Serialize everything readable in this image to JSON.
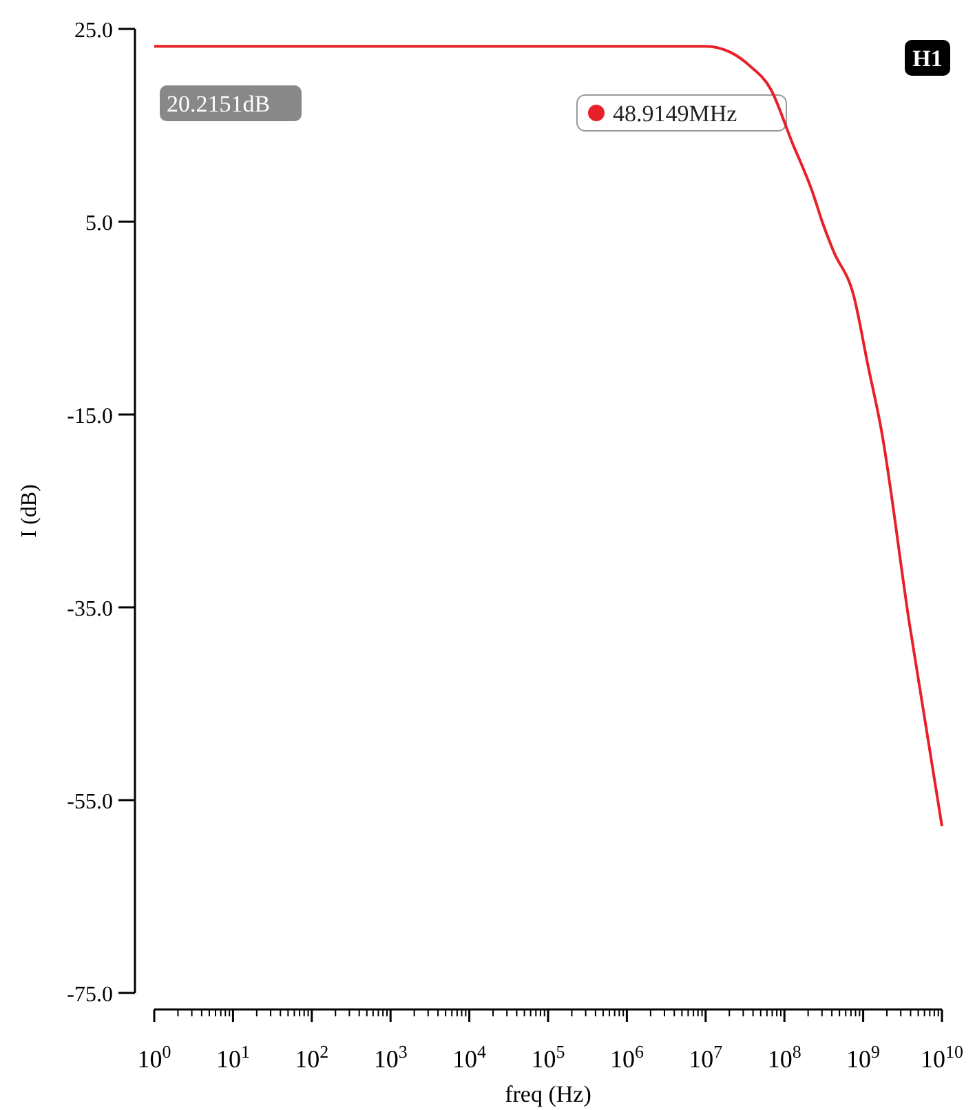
{
  "chart_data": {
    "type": "line",
    "xlabel": "freq (Hz)",
    "ylabel": "I (dB)",
    "log": "x",
    "x": [
      1,
      1000,
      100000,
      1000000,
      10000000,
      20400000,
      37200000,
      67600000,
      123000000,
      229000000,
      302000000,
      417000000,
      759000000,
      1150000000,
      1700000000,
      3800000000,
      10000000000
    ],
    "series": [
      {
        "color": "#e8202a",
        "values": [
          23.2,
          23.2,
          23.2,
          23.2,
          23.2,
          22.6,
          21.1,
          18.7,
          13.4,
          8.0,
          5.0,
          2.0,
          -2.7,
          -9.9,
          -16.6,
          -36.3,
          -57.7
        ]
      }
    ],
    "xlim": [
      1,
      10000000000
    ],
    "xticks": [
      {
        "value": 1,
        "label": "10$^{0}$"
      },
      {
        "value": 10,
        "label": "10$^{1}$"
      },
      {
        "value": 100,
        "label": "10$^{2}$"
      },
      {
        "value": 1000,
        "label": "10$^{3}$"
      },
      {
        "value": 10000,
        "label": "10$^{4}$"
      },
      {
        "value": 100000,
        "label": "10$^{5}$"
      },
      {
        "value": 1000000,
        "label": "10$^{6}$"
      },
      {
        "value": 10000000,
        "label": "10$^{7}$"
      },
      {
        "value": 100000000,
        "label": "10$^{8}$"
      },
      {
        "value": 1000000000,
        "label": "10$^{9}$"
      },
      {
        "value": 10000000000,
        "label": "10$^{10}$"
      }
    ],
    "ylim": [
      -75,
      25
    ],
    "yticks": [
      {
        "value": 25,
        "label": "25.0"
      },
      {
        "value": 5,
        "label": "5.0"
      },
      {
        "value": -15,
        "label": "-15.0"
      },
      {
        "value": -35,
        "label": "-35.0"
      },
      {
        "value": -55,
        "label": "-55.0"
      },
      {
        "value": -75,
        "label": "-75.0"
      }
    ],
    "annotations": [
      "20.2151dB",
      "48.9149MHz",
      "H1"
    ],
    "grid": false
  }
}
